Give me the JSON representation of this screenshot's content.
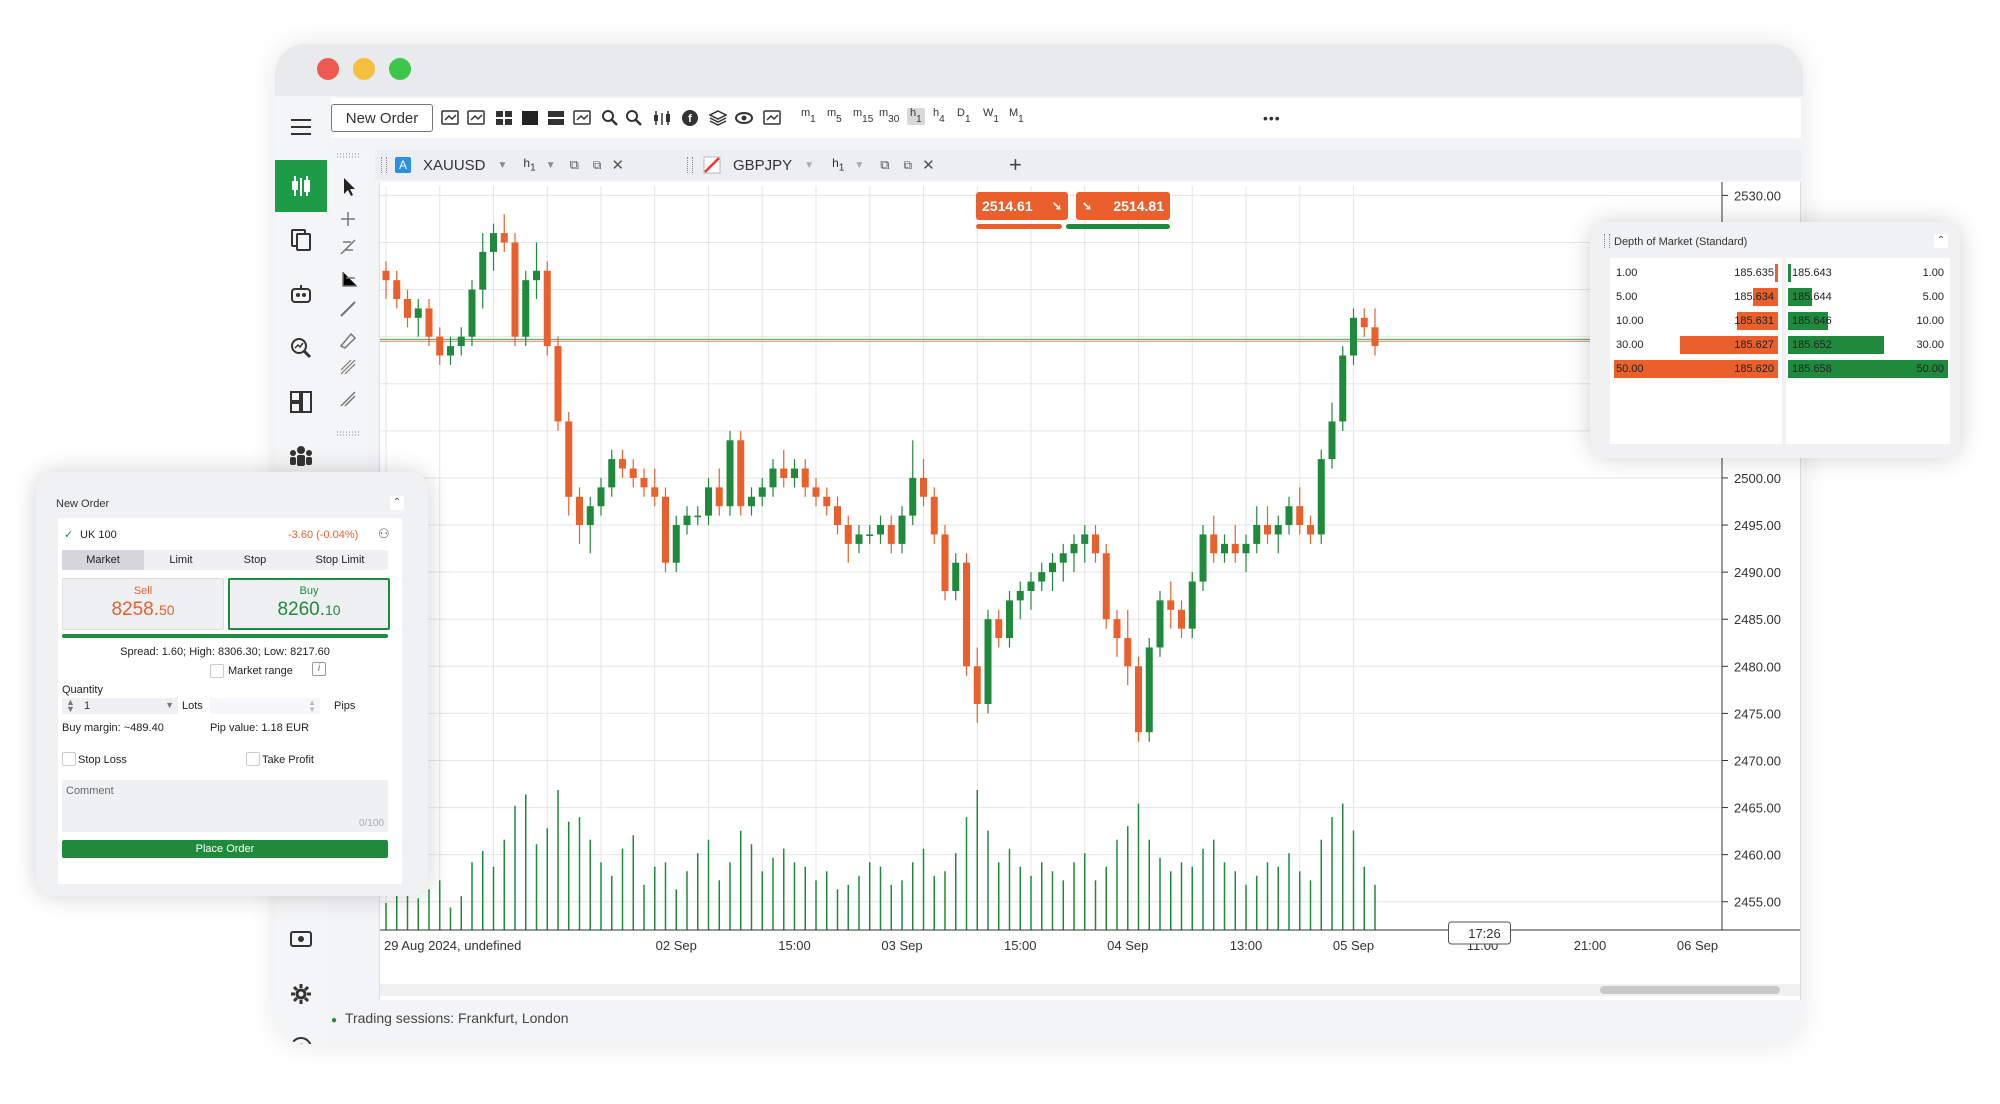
{
  "toolbar": {
    "new_order_label": "New Order",
    "timeframes": [
      {
        "letter": "m",
        "num": "1"
      },
      {
        "letter": "m",
        "num": "5"
      },
      {
        "letter": "m",
        "num": "15"
      },
      {
        "letter": "m",
        "num": "30"
      },
      {
        "letter": "h",
        "num": "1"
      },
      {
        "letter": "h",
        "num": "4"
      },
      {
        "letter": "D",
        "num": "1"
      },
      {
        "letter": "W",
        "num": "1"
      },
      {
        "letter": "M",
        "num": "1"
      }
    ],
    "active_timeframe": "h1",
    "more_label": "•••"
  },
  "tabs": [
    {
      "badge": "A",
      "symbol": "XAUUSD",
      "tf_letter": "h",
      "tf_num": "1"
    },
    {
      "badge": "",
      "symbol": "GBPJPY",
      "tf_letter": "h",
      "tf_num": "1"
    }
  ],
  "add_tab_label": "+",
  "quote": {
    "bid": "2514.61",
    "ask": "2514.81"
  },
  "chart_data": {
    "type": "candlestick",
    "symbol": "XAUUSD",
    "timeframe": "h1",
    "ylim": [
      2452,
      2531
    ],
    "y_ticks": [
      "2530.00",
      "2500.00",
      "2495.00",
      "2490.00",
      "2485.00",
      "2480.00",
      "2475.00",
      "2470.00",
      "2465.00",
      "2460.00",
      "2455.00"
    ],
    "y_tick_values": [
      2530,
      2500,
      2495,
      2490,
      2485,
      2480,
      2475,
      2470,
      2465,
      2460,
      2455
    ],
    "x_ticks": [
      "29 Aug 2024, undefined",
      "02 Sep",
      "15:00",
      "03 Sep",
      "15:00",
      "04 Sep",
      "13:00",
      "05 Sep",
      "11:00",
      "21:00",
      "06 Sep"
    ],
    "x_tick_indices": [
      0,
      27,
      38,
      48,
      59,
      69,
      80,
      90,
      102,
      112,
      122
    ],
    "current_price_line": 2514.7,
    "crosshair_time": "17:26",
    "up_color": "#1f8a3c",
    "down_color": "#e9602d",
    "candles": [
      [
        2522,
        2523,
        2519,
        2521
      ],
      [
        2521,
        2522,
        2518,
        2519
      ],
      [
        2519,
        2520,
        2516,
        2517
      ],
      [
        2517,
        2519,
        2515,
        2518
      ],
      [
        2518,
        2519,
        2514,
        2515
      ],
      [
        2515,
        2516,
        2512,
        2513
      ],
      [
        2513,
        2515,
        2512,
        2514
      ],
      [
        2514,
        2516,
        2513,
        2515
      ],
      [
        2515,
        2521,
        2514,
        2520
      ],
      [
        2520,
        2526,
        2518,
        2524
      ],
      [
        2524,
        2527,
        2522,
        2526
      ],
      [
        2526,
        2528,
        2524,
        2525
      ],
      [
        2525,
        2526,
        2514,
        2515
      ],
      [
        2515,
        2522,
        2514,
        2521
      ],
      [
        2521,
        2525,
        2519,
        2522
      ],
      [
        2522,
        2523,
        2513,
        2514
      ],
      [
        2514,
        2515,
        2505,
        2506
      ],
      [
        2506,
        2507,
        2496,
        2498
      ],
      [
        2498,
        2499,
        2493,
        2495
      ],
      [
        2495,
        2498,
        2492,
        2497
      ],
      [
        2497,
        2500,
        2496,
        2499
      ],
      [
        2499,
        2503,
        2498,
        2502
      ],
      [
        2502,
        2503,
        2500,
        2501
      ],
      [
        2501,
        2502,
        2499,
        2500
      ],
      [
        2500,
        2501,
        2498,
        2499
      ],
      [
        2499,
        2501,
        2497,
        2498
      ],
      [
        2498,
        2499,
        2490,
        2491
      ],
      [
        2491,
        2496,
        2490,
        2495
      ],
      [
        2495,
        2497,
        2494,
        2496
      ],
      [
        2496,
        2497,
        2495,
        2496
      ],
      [
        2496,
        2500,
        2495,
        2499
      ],
      [
        2499,
        2501,
        2496,
        2497
      ],
      [
        2497,
        2505,
        2496,
        2504
      ],
      [
        2504,
        2505,
        2496,
        2497
      ],
      [
        2497,
        2499,
        2496,
        2498
      ],
      [
        2498,
        2500,
        2497,
        2499
      ],
      [
        2499,
        2502,
        2498,
        2501
      ],
      [
        2501,
        2503,
        2499,
        2500
      ],
      [
        2500,
        2502,
        2499,
        2501
      ],
      [
        2501,
        2502,
        2498,
        2499
      ],
      [
        2499,
        2500,
        2497,
        2498
      ],
      [
        2498,
        2499,
        2496,
        2497
      ],
      [
        2497,
        2498,
        2494,
        2495
      ],
      [
        2495,
        2496,
        2491,
        2493
      ],
      [
        2493,
        2495,
        2492,
        2494
      ],
      [
        2494,
        2495,
        2493,
        2494
      ],
      [
        2494,
        2496,
        2493,
        2495
      ],
      [
        2495,
        2496,
        2492,
        2493
      ],
      [
        2493,
        2497,
        2492,
        2496
      ],
      [
        2496,
        2504,
        2495,
        2500
      ],
      [
        2500,
        2502,
        2497,
        2498
      ],
      [
        2498,
        2499,
        2493,
        2494
      ],
      [
        2494,
        2495,
        2487,
        2488
      ],
      [
        2488,
        2492,
        2487,
        2491
      ],
      [
        2491,
        2492,
        2479,
        2480
      ],
      [
        2480,
        2482,
        2474,
        2476
      ],
      [
        2476,
        2486,
        2475,
        2485
      ],
      [
        2485,
        2486,
        2482,
        2483
      ],
      [
        2483,
        2488,
        2482,
        2487
      ],
      [
        2487,
        2489,
        2485,
        2488
      ],
      [
        2488,
        2490,
        2486,
        2489
      ],
      [
        2489,
        2491,
        2488,
        2490
      ],
      [
        2490,
        2492,
        2488,
        2491
      ],
      [
        2491,
        2493,
        2489,
        2492
      ],
      [
        2492,
        2494,
        2490,
        2493
      ],
      [
        2493,
        2495,
        2491,
        2494
      ],
      [
        2494,
        2495,
        2491,
        2492
      ],
      [
        2492,
        2493,
        2484,
        2485
      ],
      [
        2485,
        2486,
        2481,
        2483
      ],
      [
        2483,
        2486,
        2478,
        2480
      ],
      [
        2480,
        2481,
        2472,
        2473
      ],
      [
        2473,
        2483,
        2472,
        2482
      ],
      [
        2482,
        2488,
        2481,
        2487
      ],
      [
        2487,
        2489,
        2484,
        2486
      ],
      [
        2486,
        2487,
        2483,
        2484
      ],
      [
        2484,
        2490,
        2483,
        2489
      ],
      [
        2489,
        2495,
        2488,
        2494
      ],
      [
        2494,
        2496,
        2491,
        2492
      ],
      [
        2492,
        2494,
        2491,
        2493
      ],
      [
        2493,
        2495,
        2491,
        2492
      ],
      [
        2492,
        2494,
        2490,
        2493
      ],
      [
        2493,
        2497,
        2492,
        2495
      ],
      [
        2495,
        2497,
        2493,
        2494
      ],
      [
        2494,
        2496,
        2492,
        2495
      ],
      [
        2495,
        2498,
        2494,
        2497
      ],
      [
        2497,
        2499,
        2494,
        2495
      ],
      [
        2495,
        2496,
        2493,
        2494
      ],
      [
        2494,
        2503,
        2493,
        2502
      ],
      [
        2502,
        2508,
        2501,
        2506
      ],
      [
        2506,
        2514,
        2505,
        2513
      ],
      [
        2513,
        2518,
        2512,
        2517
      ],
      [
        2517,
        2518,
        2515,
        2516
      ],
      [
        2516,
        2518,
        2513,
        2514
      ]
    ],
    "volumes": [
      12,
      16,
      20,
      14,
      18,
      22,
      10,
      15,
      30,
      35,
      28,
      40,
      55,
      60,
      38,
      45,
      62,
      48,
      50,
      40,
      30,
      24,
      36,
      42,
      20,
      28,
      30,
      18,
      26,
      34,
      40,
      22,
      30,
      44,
      38,
      26,
      32,
      36,
      30,
      28,
      22,
      26,
      18,
      20,
      24,
      30,
      28,
      20,
      22,
      30,
      36,
      24,
      26,
      34,
      50,
      62,
      44,
      30,
      36,
      28,
      24,
      30,
      26,
      22,
      30,
      34,
      22,
      28,
      40,
      46,
      56,
      40,
      32,
      26,
      30,
      28,
      36,
      40,
      30,
      26,
      20,
      24,
      30,
      28,
      34,
      26,
      22,
      40,
      50,
      56,
      44,
      28,
      20
    ]
  },
  "dom": {
    "title": "Depth of Market (Standard)",
    "bids": [
      {
        "size": "1.00",
        "price": "185.635"
      },
      {
        "size": "5.00",
        "price": "185.634"
      },
      {
        "size": "10.00",
        "price": "185.631"
      },
      {
        "size": "30.00",
        "price": "185.627"
      },
      {
        "size": "50.00",
        "price": "185.620"
      }
    ],
    "asks": [
      {
        "size": "1.00",
        "price": "185.643"
      },
      {
        "size": "5.00",
        "price": "185.644"
      },
      {
        "size": "10.00",
        "price": "185.646"
      },
      {
        "size": "30.00",
        "price": "185.652"
      },
      {
        "size": "50.00",
        "price": "185.658"
      }
    ],
    "bid_fill": [
      0.02,
      0.15,
      0.25,
      0.6,
      1.0
    ],
    "ask_fill": [
      0.02,
      0.15,
      0.25,
      0.6,
      1.0
    ]
  },
  "new_order": {
    "title": "New Order",
    "symbol": "UK 100",
    "change": "-3.60 (-0.04%)",
    "order_types": [
      "Market",
      "Limit",
      "Stop",
      "Stop Limit"
    ],
    "sell_label": "Sell",
    "sell_price_main": "8258.",
    "sell_price_pip": "50",
    "buy_label": "Buy",
    "buy_price_main": "8260.",
    "buy_price_pip": "10",
    "spread_text": "Spread: 1.60; High: 8306.30; Low: 8217.60",
    "quantity_label": "Quantity",
    "quantity_value": "1",
    "lots_label": "Lots",
    "market_range_label": "Market range",
    "pips_label": "Pips",
    "buy_margin": "Buy margin: ~489.40",
    "pip_value": "Pip value: 1.18 EUR",
    "stop_loss_label": "Stop Loss",
    "take_profit_label": "Take Profit",
    "comment_placeholder": "Comment",
    "comment_counter": "0/100",
    "place_order_label": "Place Order"
  },
  "status": {
    "text": "Trading sessions: Frankfurt, London"
  },
  "colors": {
    "accent_green": "#1d9b47",
    "sell": "#e9602d",
    "buy": "#1f8a3c",
    "price_line": "#6fae7d"
  }
}
